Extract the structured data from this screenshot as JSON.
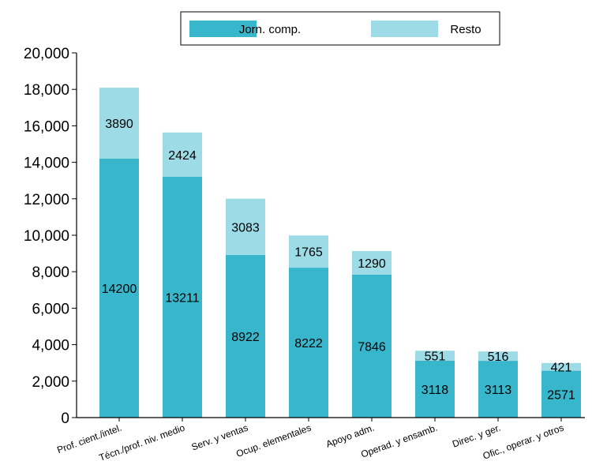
{
  "chart_data": {
    "type": "bar",
    "stacked": true,
    "title": "",
    "xlabel": "",
    "ylabel": "",
    "ylim": [
      0,
      20000
    ],
    "yticks": [
      0,
      2000,
      4000,
      6000,
      8000,
      10000,
      12000,
      14000,
      16000,
      18000,
      20000
    ],
    "ytick_labels": [
      "0",
      "2,000",
      "4,000",
      "6,000",
      "8,000",
      "10,000",
      "12,000",
      "14,000",
      "16,000",
      "18,000",
      "20,000"
    ],
    "categories": [
      "Prof. cient./intel.",
      "Técn./prof. niv. medio",
      "Serv. y ventas",
      "Ocup. elementales",
      "Apoyo adm.",
      "Operad. y ensamb.",
      "Direc. y ger.",
      "Ofic., operar. y otros"
    ],
    "series": [
      {
        "name": "Jorn. comp.",
        "color": "#38b6cc",
        "values": [
          14200,
          13211,
          8922,
          8222,
          7846,
          3118,
          3113,
          2571
        ]
      },
      {
        "name": "Resto",
        "color": "#9ddbe6",
        "values": [
          3890,
          2424,
          3083,
          1765,
          1290,
          551,
          516,
          421
        ]
      }
    ],
    "legend": "top-center",
    "grid": false
  }
}
